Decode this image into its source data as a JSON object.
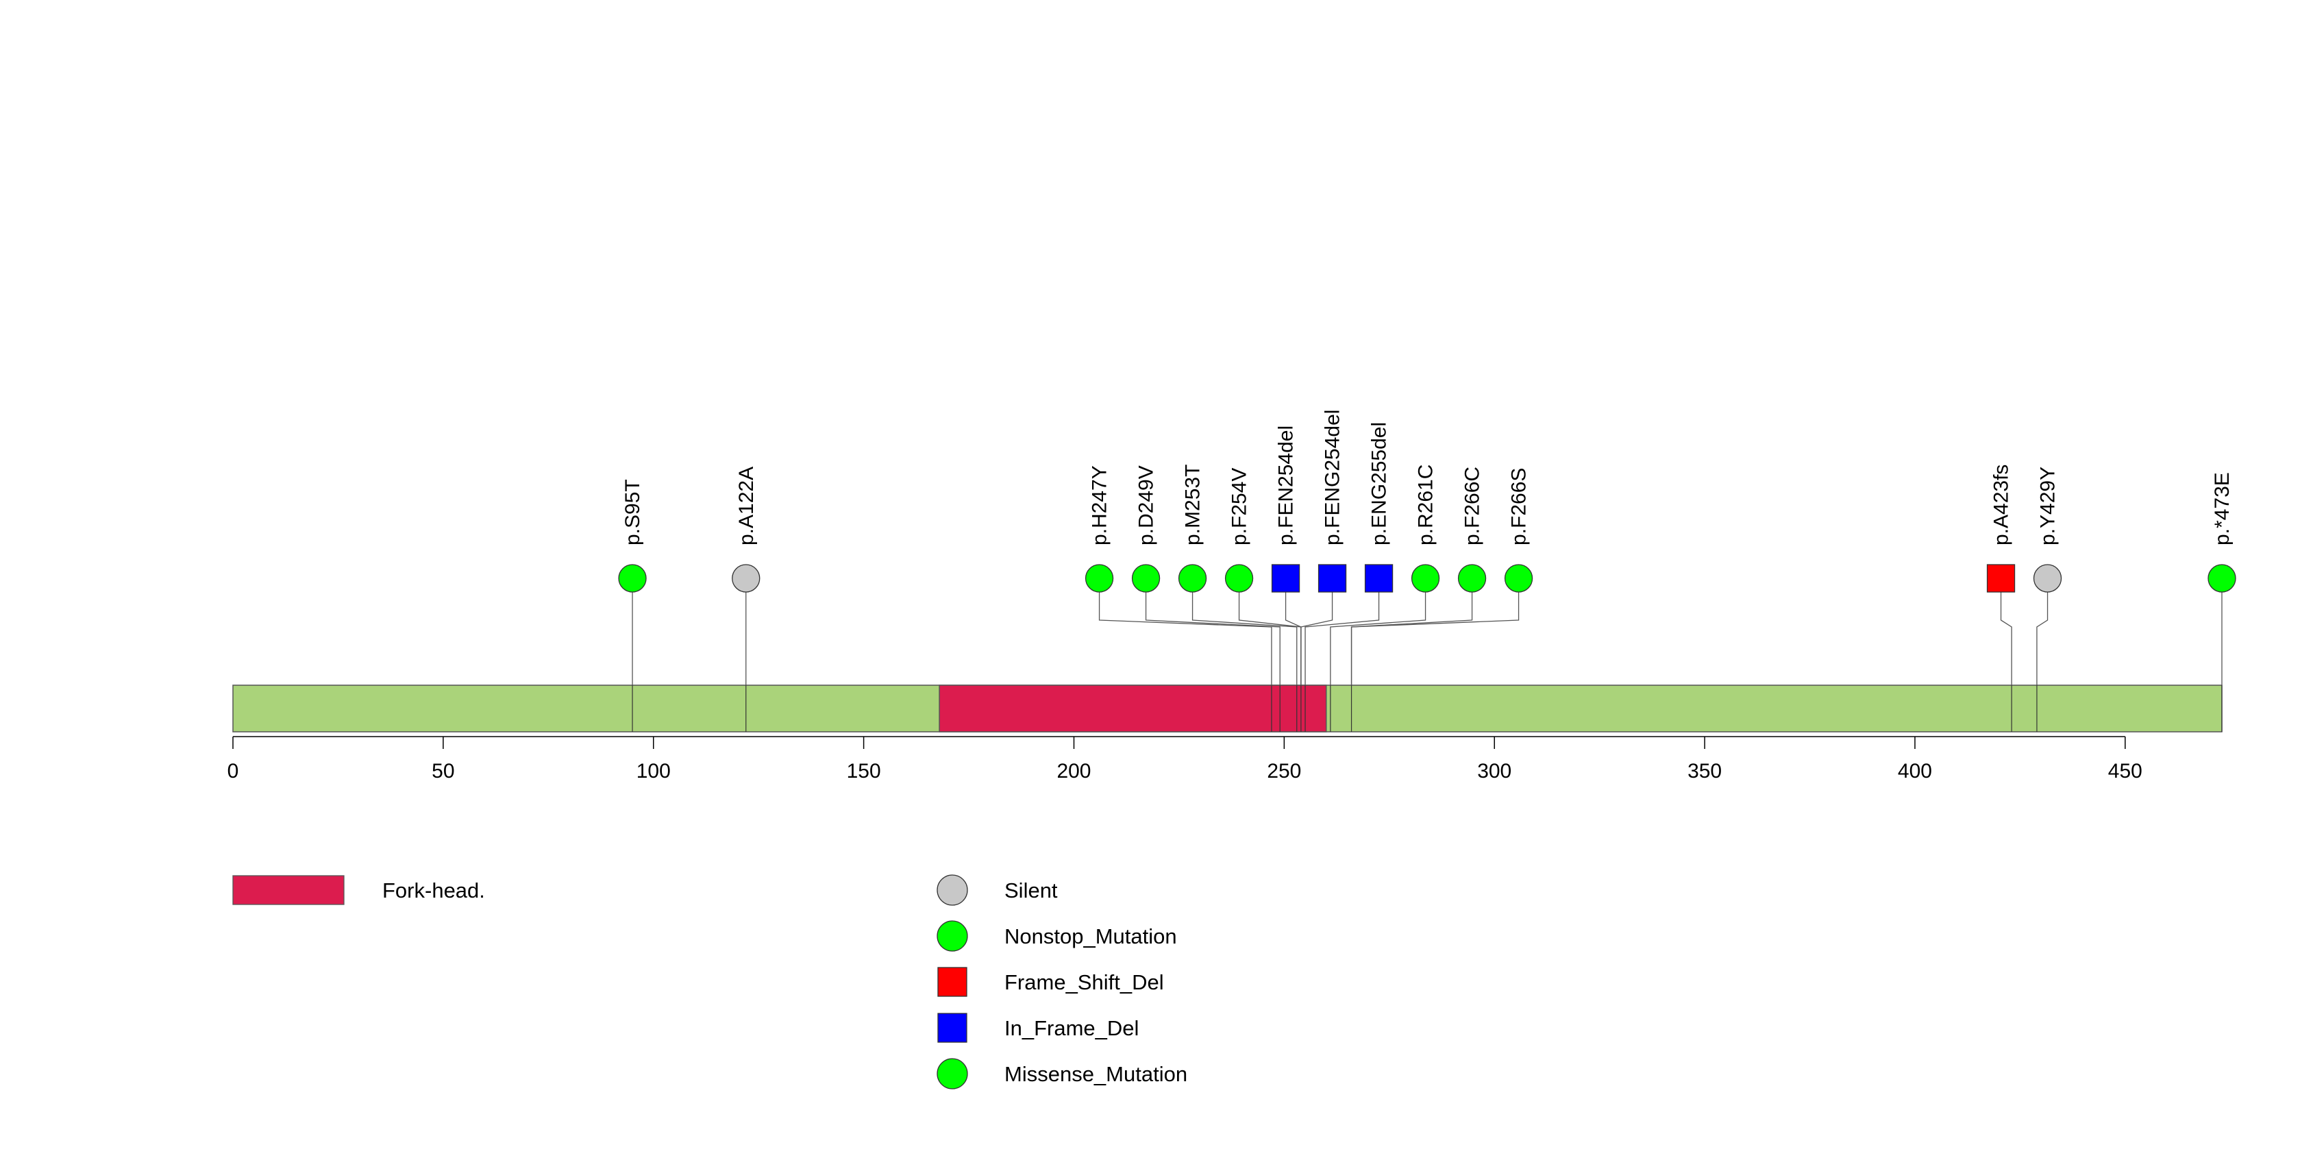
{
  "chart_data": {
    "type": "lollipop",
    "xlim": [
      0,
      473
    ],
    "protein_length": 473,
    "x_ticks": [
      0,
      50,
      100,
      150,
      200,
      250,
      300,
      350,
      400,
      450
    ],
    "domains": [
      {
        "name": "Fork-head.",
        "start": 168,
        "end": 260,
        "color": "#dc1c4e"
      }
    ],
    "mutations": [
      {
        "label": "p.S95T",
        "position": 95,
        "type": "Missense_Mutation"
      },
      {
        "label": "p.A122A",
        "position": 122,
        "type": "Silent"
      },
      {
        "label": "p.H247Y",
        "position": 247,
        "type": "Missense_Mutation"
      },
      {
        "label": "p.D249V",
        "position": 249,
        "type": "Missense_Mutation"
      },
      {
        "label": "p.M253T",
        "position": 253,
        "type": "Missense_Mutation"
      },
      {
        "label": "p.F254V",
        "position": 254,
        "type": "Missense_Mutation"
      },
      {
        "label": "p.FEN254del",
        "position": 254,
        "type": "In_Frame_Del"
      },
      {
        "label": "p.FENG254del",
        "position": 254,
        "type": "In_Frame_Del"
      },
      {
        "label": "p.ENG255del",
        "position": 255,
        "type": "In_Frame_Del"
      },
      {
        "label": "p.R261C",
        "position": 261,
        "type": "Missense_Mutation"
      },
      {
        "label": "p.F266C",
        "position": 266,
        "type": "Missense_Mutation"
      },
      {
        "label": "p.F266S",
        "position": 266,
        "type": "Missense_Mutation"
      },
      {
        "label": "p.A423fs",
        "position": 423,
        "type": "Frame_Shift_Del"
      },
      {
        "label": "p.Y429Y",
        "position": 429,
        "type": "Silent"
      },
      {
        "label": "p.*473E",
        "position": 473,
        "type": "Nonstop_Mutation"
      }
    ],
    "legend_domains": [
      {
        "label": "Fork-head.",
        "color": "#dc1c4e"
      }
    ],
    "legend_mutations": [
      {
        "label": "Silent",
        "shape": "circle",
        "color": "#c8c8c8"
      },
      {
        "label": "Nonstop_Mutation",
        "shape": "circle",
        "color": "#00ff00"
      },
      {
        "label": "Frame_Shift_Del",
        "shape": "square",
        "color": "#ff0000"
      },
      {
        "label": "In_Frame_Del",
        "shape": "square",
        "color": "#0000ff"
      },
      {
        "label": "Missense_Mutation",
        "shape": "circle",
        "color": "#00ff00"
      }
    ],
    "backbone_color": "#aad37a"
  }
}
